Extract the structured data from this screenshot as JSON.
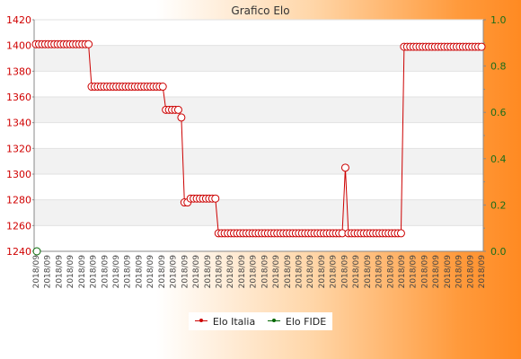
{
  "chart_data": {
    "type": "line",
    "title": "Grafico Elo",
    "y_left": {
      "min": 1240,
      "max": 1420,
      "ticks": [
        1240,
        1260,
        1280,
        1300,
        1320,
        1340,
        1360,
        1380,
        1400,
        1420
      ]
    },
    "y_right": {
      "min": 0.0,
      "max": 1.0,
      "ticks": [
        "0.0",
        "0.2",
        "0.4",
        "0.6",
        "0.8",
        "1.0"
      ]
    },
    "x_label_sample": "2018/09",
    "x_label_count": 40,
    "grid": true,
    "legend_position": "bottom-center",
    "series": [
      {
        "name": "Elo Italia",
        "color": "#cc0000",
        "values": [
          1401,
          1401,
          1401,
          1401,
          1401,
          1401,
          1401,
          1401,
          1401,
          1401,
          1401,
          1401,
          1401,
          1401,
          1401,
          1401,
          1401,
          1401,
          1368,
          1368,
          1368,
          1368,
          1368,
          1368,
          1368,
          1368,
          1368,
          1368,
          1368,
          1368,
          1368,
          1368,
          1368,
          1368,
          1368,
          1368,
          1368,
          1368,
          1368,
          1368,
          1368,
          1368,
          1350,
          1350,
          1350,
          1350,
          1350,
          1344,
          1278,
          1278,
          1281,
          1281,
          1281,
          1281,
          1281,
          1281,
          1281,
          1281,
          1281,
          1254,
          1254,
          1254,
          1254,
          1254,
          1254,
          1254,
          1254,
          1254,
          1254,
          1254,
          1254,
          1254,
          1254,
          1254,
          1254,
          1254,
          1254,
          1254,
          1254,
          1254,
          1254,
          1254,
          1254,
          1254,
          1254,
          1254,
          1254,
          1254,
          1254,
          1254,
          1254,
          1254,
          1254,
          1254,
          1254,
          1254,
          1254,
          1254,
          1254,
          1254,
          1305,
          1254,
          1254,
          1254,
          1254,
          1254,
          1254,
          1254,
          1254,
          1254,
          1254,
          1254,
          1254,
          1254,
          1254,
          1254,
          1254,
          1254,
          1254,
          1399,
          1399,
          1399,
          1399,
          1399,
          1399,
          1399,
          1399,
          1399,
          1399,
          1399,
          1399,
          1399,
          1399,
          1399,
          1399,
          1399,
          1399,
          1399,
          1399,
          1399,
          1399,
          1399,
          1399,
          1399,
          1399
        ]
      },
      {
        "name": "Elo FIDE",
        "color": "#006600",
        "values": [
          1240
        ]
      }
    ]
  }
}
